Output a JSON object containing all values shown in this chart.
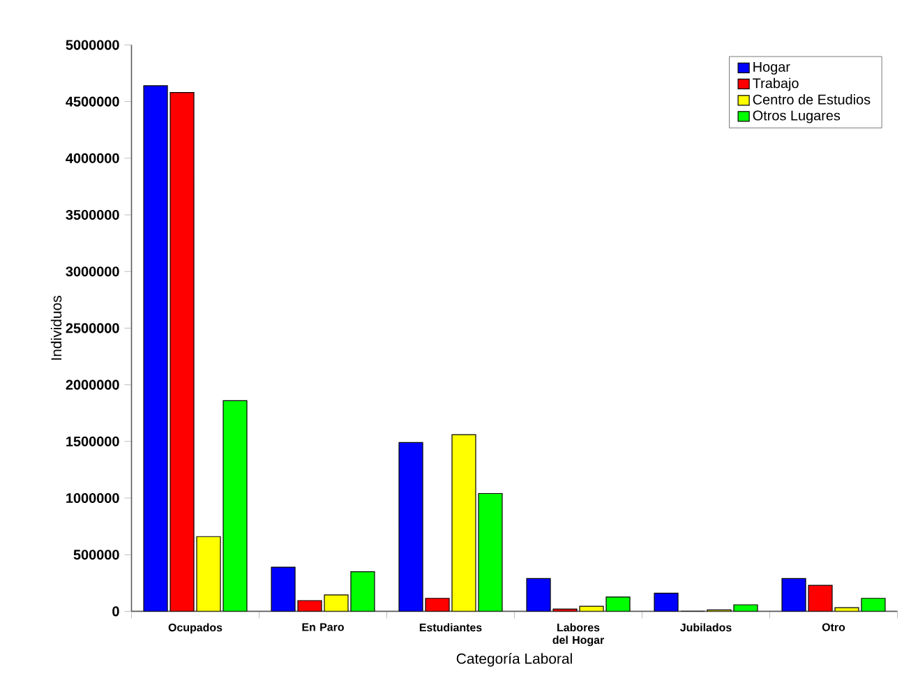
{
  "chart_data": {
    "type": "bar",
    "xlabel": "Categoría Laboral",
    "ylabel": "Individuos",
    "categories": [
      "Ocupados",
      "En Paro",
      "Estudiantes",
      "Labores del Hogar",
      "Jubilados",
      "Otro"
    ],
    "series": [
      {
        "name": "Hogar",
        "color": "#0000ff",
        "values": [
          4640000,
          390000,
          1490000,
          290000,
          160000,
          290000
        ]
      },
      {
        "name": "Trabajo",
        "color": "#ff0000",
        "values": [
          4580000,
          95000,
          115000,
          20000,
          0,
          230000
        ]
      },
      {
        "name": "Centro de Estudios",
        "color": "#ffff00",
        "values": [
          660000,
          145000,
          1560000,
          45000,
          12000,
          33000
        ]
      },
      {
        "name": "Otros Lugares",
        "color": "#00ff00",
        "values": [
          1860000,
          350000,
          1040000,
          127000,
          58000,
          115000
        ]
      }
    ],
    "ylim": [
      0,
      5000000
    ],
    "yticks": [
      0,
      500000,
      1000000,
      1500000,
      2000000,
      2500000,
      3000000,
      3500000,
      4000000,
      4500000,
      5000000
    ],
    "legend": "top right"
  }
}
